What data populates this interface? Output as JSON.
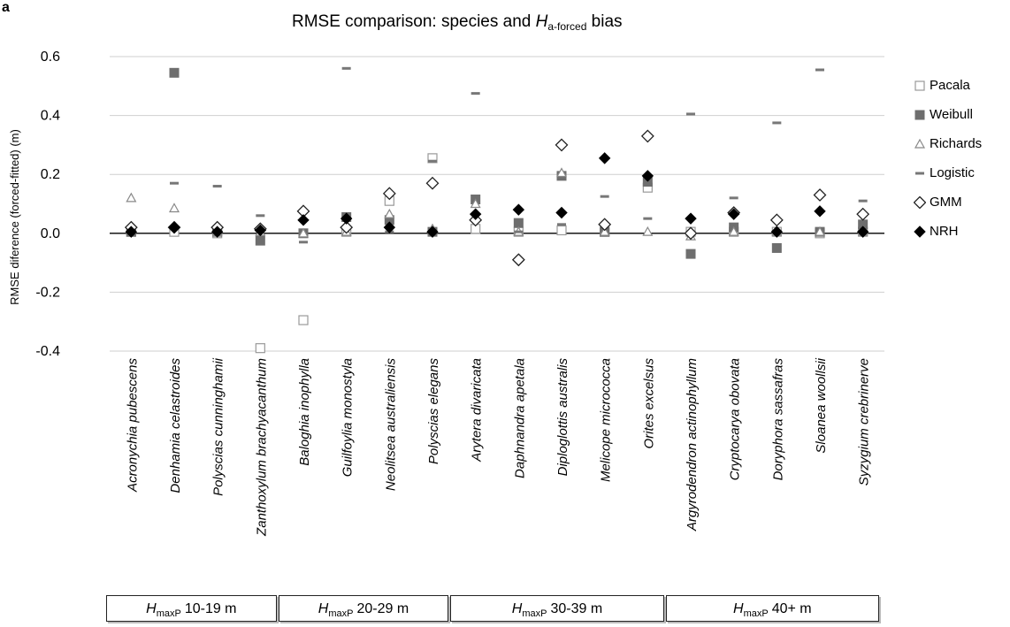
{
  "panel_label": "a",
  "chart_data": {
    "type": "scatter",
    "title_text": "RMSE comparison: species and ",
    "title_italic": "H",
    "title_sub": "a-forced",
    "title_suffix": " bias",
    "ylabel": "RMSE diference (forced-fitted) (m)",
    "ylim": [
      -0.4,
      0.6
    ],
    "yticks": [
      "-0.4",
      "-0.2",
      "0.0",
      "0.2",
      "0.4",
      "0.6"
    ],
    "grid": true,
    "legend_position": "right",
    "categories": [
      "Acronychia pubescens",
      "Denhamia celastroides",
      "Polyscias cunninghamii",
      "Zanthoxylum brachyacanthum",
      "Baloghia inophylla",
      "Guilfoylia monostyla",
      "Neolitsea australiensis",
      "Polyscias elegans",
      "Arytera divaricata",
      "Daphnandra apetala",
      "Diploglottis australis",
      "Melicope micrococca",
      "Orites excelsus",
      "Argyrodendron actinophyllum",
      "Cryptocarya obovata",
      "Doryphora sassafras",
      "Sloanea woollsii",
      "Syzygium crebrinerve"
    ],
    "series": [
      {
        "name": "Pacala",
        "marker": "square-open",
        "color": "#999999",
        "values": [
          0.005,
          0.005,
          0.0,
          -0.39,
          -0.295,
          0.005,
          0.11,
          0.255,
          0.015,
          0.005,
          0.01,
          0.005,
          0.155,
          0.005,
          0.005,
          0.005,
          0.0,
          0.005
        ]
      },
      {
        "name": "Weibull",
        "marker": "square-filled",
        "color": "#6e6e6e",
        "values": [
          0.005,
          0.545,
          0.005,
          -0.025,
          0.0,
          0.055,
          0.045,
          0.005,
          0.115,
          0.035,
          0.195,
          0.005,
          0.175,
          -0.07,
          0.02,
          -0.05,
          0.005,
          0.03
        ]
      },
      {
        "name": "Richards",
        "marker": "triangle-open",
        "color": "#888888",
        "values": [
          0.12,
          0.085,
          0.005,
          0.005,
          0.0,
          0.005,
          0.065,
          0.015,
          0.1,
          0.005,
          0.205,
          0.005,
          0.005,
          -0.01,
          0.005,
          0.005,
          0.005,
          0.005
        ]
      },
      {
        "name": "Logistic",
        "marker": "dash",
        "color": "#777777",
        "values": [
          0.005,
          0.17,
          0.16,
          0.06,
          -0.03,
          0.56,
          0.005,
          0.245,
          0.475,
          0.005,
          0.03,
          0.125,
          0.05,
          0.405,
          0.12,
          0.375,
          0.555,
          0.11
        ]
      },
      {
        "name": "GMM",
        "marker": "diamond-open",
        "color": "#222222",
        "values": [
          0.02,
          0.02,
          0.02,
          0.015,
          0.075,
          0.02,
          0.135,
          0.17,
          0.045,
          -0.09,
          0.3,
          0.03,
          0.33,
          0.0,
          0.07,
          0.045,
          0.13,
          0.065
        ]
      },
      {
        "name": "NRH",
        "marker": "diamond-filled",
        "color": "#000000",
        "values": [
          0.005,
          0.02,
          0.005,
          0.01,
          0.045,
          0.05,
          0.02,
          0.005,
          0.065,
          0.08,
          0.07,
          0.255,
          0.195,
          0.05,
          0.065,
          0.005,
          0.075,
          0.005
        ]
      }
    ],
    "groups": [
      {
        "prefix": "H",
        "sub": "maxP",
        "label": "10-19 m",
        "start": 0,
        "end": 3
      },
      {
        "prefix": "H",
        "sub": "maxP",
        "label": "20-29 m",
        "start": 4,
        "end": 7
      },
      {
        "prefix": "H",
        "sub": "maxP",
        "label": "30-39 m",
        "start": 8,
        "end": 12
      },
      {
        "prefix": "H",
        "sub": "maxP",
        "label": "40+ m",
        "start": 13,
        "end": 17
      }
    ]
  }
}
